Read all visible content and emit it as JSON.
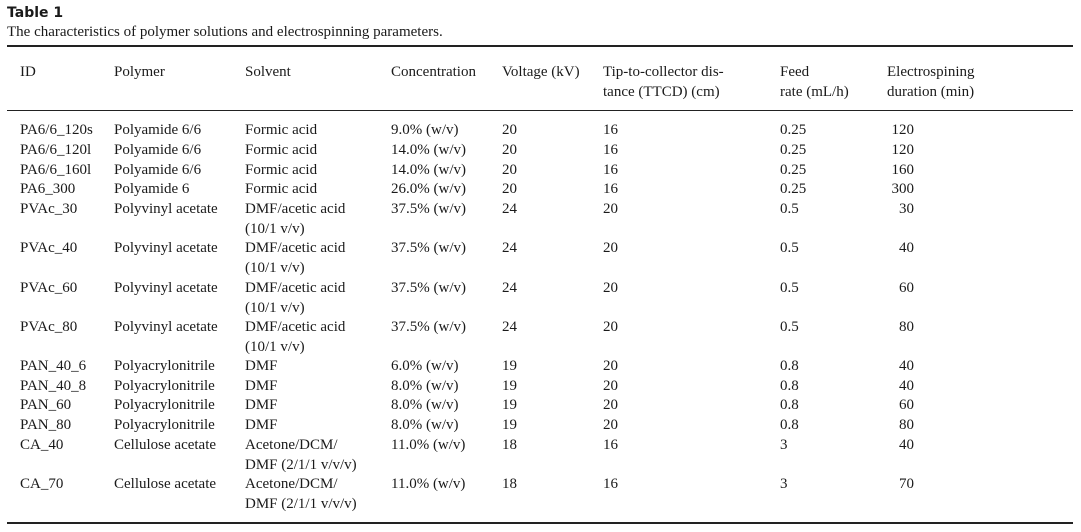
{
  "caption": {
    "label": "Table 1",
    "title": "The characteristics of polymer solutions and electrospinning parameters."
  },
  "headers": [
    "ID",
    "Polymer",
    "Solvent",
    "Concentration",
    "Voltage (kV)",
    "Tip-to-collector dis-\ntance (TTCD) (cm)",
    "Feed\nrate (mL/h)",
    "Electrospining\nduration (min)"
  ],
  "rows": [
    [
      "PA6/6_120s",
      "Polyamide 6/6",
      "Formic acid",
      "9.0% (w/v)",
      "20",
      "16",
      "0.25",
      "120"
    ],
    [
      "PA6/6_120l",
      "Polyamide 6/6",
      "Formic acid",
      "14.0% (w/v)",
      "20",
      "16",
      "0.25",
      "120"
    ],
    [
      "PA6/6_160l",
      "Polyamide 6/6",
      "Formic acid",
      "14.0% (w/v)",
      "20",
      "16",
      "0.25",
      "160"
    ],
    [
      "PA6_300",
      "Polyamide 6",
      "Formic acid",
      "26.0% (w/v)",
      "20",
      "16",
      "0.25",
      "300"
    ],
    [
      "PVAc_30",
      "Polyvinyl acetate",
      "DMF/acetic acid\n(10/1 v/v)",
      "37.5% (w/v)",
      "24",
      "20",
      "0.5",
      "30"
    ],
    [
      "PVAc_40",
      "Polyvinyl acetate",
      "DMF/acetic acid\n(10/1 v/v)",
      "37.5% (w/v)",
      "24",
      "20",
      "0.5",
      "40"
    ],
    [
      "PVAc_60",
      "Polyvinyl acetate",
      "DMF/acetic acid\n(10/1 v/v)",
      "37.5% (w/v)",
      "24",
      "20",
      "0.5",
      "60"
    ],
    [
      "PVAc_80",
      "Polyvinyl acetate",
      "DMF/acetic acid\n(10/1 v/v)",
      "37.5% (w/v)",
      "24",
      "20",
      "0.5",
      "80"
    ],
    [
      "PAN_40_6",
      "Polyacrylonitrile",
      "DMF",
      "6.0% (w/v)",
      "19",
      "20",
      "0.8",
      "40"
    ],
    [
      "PAN_40_8",
      "Polyacrylonitrile",
      "DMF",
      "8.0% (w/v)",
      "19",
      "20",
      "0.8",
      "40"
    ],
    [
      "PAN_60",
      "Polyacrylonitrile",
      "DMF",
      "8.0% (w/v)",
      "19",
      "20",
      "0.8",
      "60"
    ],
    [
      "PAN_80",
      "Polyacrylonitrile",
      "DMF",
      "8.0% (w/v)",
      "19",
      "20",
      "0.8",
      "80"
    ],
    [
      "CA_40",
      "Cellulose acetate",
      "Acetone/DCM/\nDMF (2/1/1 v/v/v)",
      "11.0% (w/v)",
      "18",
      "16",
      "3",
      "40"
    ],
    [
      "CA_70",
      "Cellulose acetate",
      "Acetone/DCM/\nDMF (2/1/1 v/v/v)",
      "11.0% (w/v)",
      "18",
      "16",
      "3",
      "70"
    ]
  ]
}
